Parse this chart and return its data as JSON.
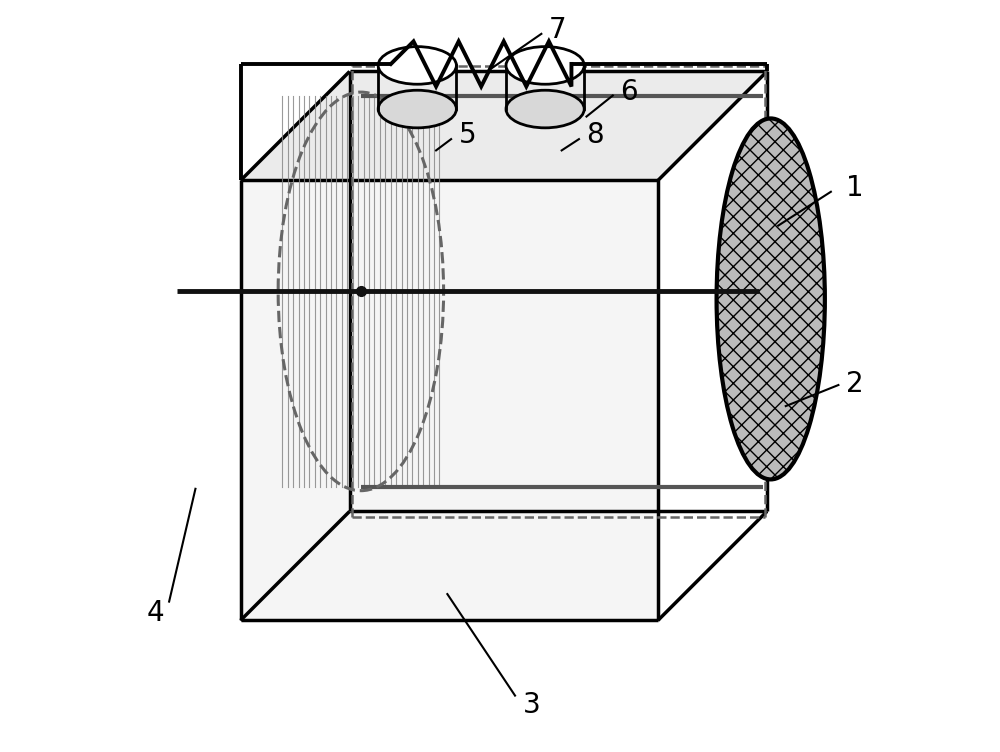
{
  "background_color": "#ffffff",
  "lc": "#000000",
  "lw": 2.5,
  "label_fontsize": 20,
  "label_color": "#000000",
  "dash_color": "#666666",
  "dash_lw": 2.2,
  "inner_line_color": "#888888",
  "inner_line_lw": 0.8,
  "rod_color": "#111111",
  "rod_lw": 3.5,
  "thick_gray_lw": 3.0,
  "thick_gray_color": "#555555",
  "wire_lw": 2.8,
  "resistor_amp": 0.03,
  "n_resistor_peaks": 4,
  "n_inner_lines": 30,
  "cathode_hatch": "x",
  "cathode_fc": "#bbbbbb",
  "cathode_ec": "#000000",
  "cathode_lw": 3.0
}
